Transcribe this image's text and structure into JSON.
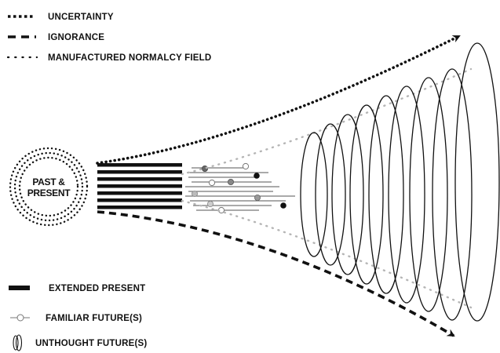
{
  "legend_top": {
    "uncertainty": "UNCERTAINTY",
    "ignorance": "IGNORANCE",
    "normalcy": "MANUFACTURED NORMALCY FIELD"
  },
  "center": {
    "line1": "PAST &",
    "line2": "PRESENT"
  },
  "legend_bottom": {
    "extended_present": "EXTENDED PRESENT",
    "familiar_futures": "FAMILIAR FUTURE(S)",
    "unthought_futures": "UNTHOUGHT FUTURE(S)"
  },
  "colors": {
    "ink": "#111111",
    "normalcy_field": "#b5b5b5",
    "dot_dark": "#111111",
    "dot_mid": "#777777",
    "dot_light": "#bbbbbb"
  }
}
